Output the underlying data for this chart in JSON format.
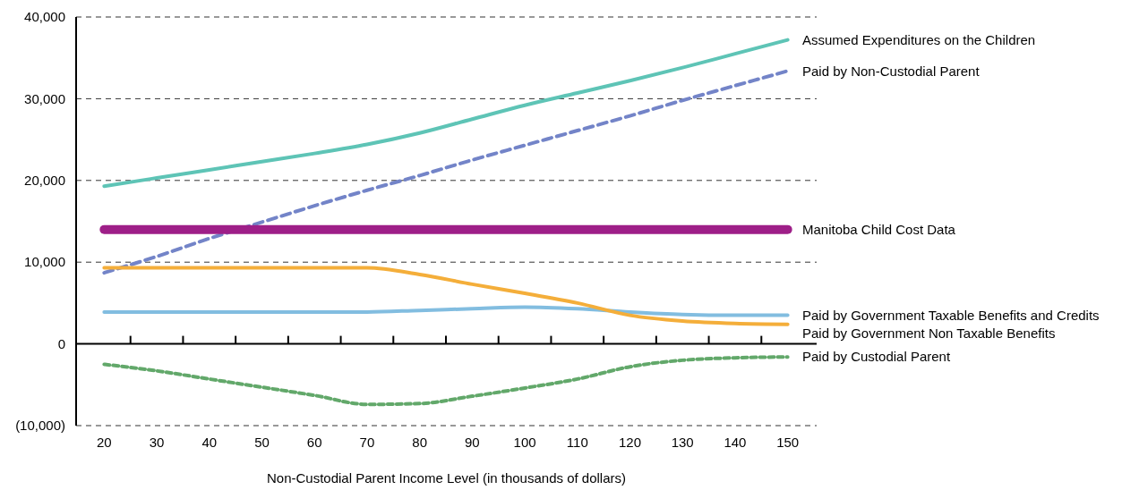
{
  "chart_data": {
    "type": "line",
    "xlabel": "Non-Custodial Parent Income Level (in thousands of dollars)",
    "categories": [
      "20",
      "30",
      "40",
      "50",
      "60",
      "70",
      "80",
      "90",
      "100",
      "110",
      "120",
      "130",
      "140",
      "150"
    ],
    "ylim": [
      -10000,
      40000
    ],
    "yticks": [
      {
        "value": -10000,
        "label": "(10,000)"
      },
      0,
      {
        "value": 10000,
        "label": "10,000"
      },
      {
        "value": 20000,
        "label": "20,000"
      },
      {
        "value": 30000,
        "label": "30,000"
      },
      {
        "value": 40000,
        "label": "40,000"
      }
    ],
    "grid": "y",
    "series": [
      {
        "name": "Assumed Expenditures on the Children",
        "color": "#5ec4b6",
        "line_style": "solid",
        "values": [
          19300,
          20300,
          21300,
          22300,
          23300,
          24400,
          25800,
          27500,
          29200,
          30700,
          32200,
          33800,
          35500,
          37200
        ]
      },
      {
        "name": "Paid by Non-Custodial Parent",
        "color": "#7384c8",
        "line_style": "dashed",
        "values": [
          8700,
          10700,
          12900,
          14900,
          16900,
          18800,
          20600,
          22500,
          24300,
          26100,
          27900,
          29800,
          31600,
          33400
        ]
      },
      {
        "name": "Manitoba Child Cost Data",
        "color": "#9e1f88",
        "line_style": "solid",
        "values": [
          14000,
          14000,
          14000,
          14000,
          14000,
          14000,
          14000,
          14000,
          14000,
          14000,
          14000,
          14000,
          14000,
          14000
        ]
      },
      {
        "name": "Paid by Government Taxable Benefits and Credits",
        "color": "#82bde0",
        "line_style": "solid",
        "values": [
          3900,
          3900,
          3900,
          3900,
          3900,
          3900,
          4100,
          4300,
          4500,
          4300,
          3900,
          3600,
          3500,
          3500
        ]
      },
      {
        "name": "Paid by Government Non Taxable Benefits",
        "color": "#f4ae3a",
        "line_style": "solid",
        "values": [
          9300,
          9300,
          9300,
          9300,
          9300,
          9300,
          8500,
          7300,
          6200,
          5000,
          3500,
          2800,
          2500,
          2400
        ]
      },
      {
        "name": "Paid by Custodial Parent",
        "color": "#62a86a",
        "line_style": "dotted",
        "values": [
          -2500,
          -3300,
          -4300,
          -5300,
          -6300,
          -7400,
          -7300,
          -6400,
          -5400,
          -4300,
          -2800,
          -2000,
          -1700,
          -1600
        ]
      }
    ]
  }
}
